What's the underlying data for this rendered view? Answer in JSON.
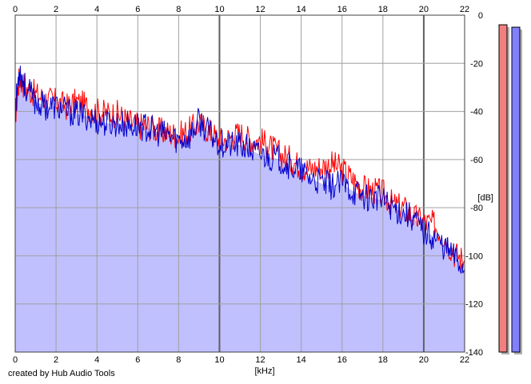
{
  "footer": "created by Hub Audio Tools",
  "chart_data": {
    "type": "line",
    "title": "",
    "xlabel": "[kHz]",
    "ylabel": "[dB]",
    "xlim": [
      0,
      22
    ],
    "ylim": [
      -140,
      0
    ],
    "x_ticks": [
      0,
      2,
      4,
      6,
      8,
      10,
      12,
      14,
      16,
      18,
      20,
      22
    ],
    "x_tick_labels": [
      "0",
      "2",
      "4",
      "6",
      "8",
      "10",
      "12",
      "14",
      "16",
      "18",
      "20",
      "22"
    ],
    "y_ticks": [
      0,
      -20,
      -40,
      -60,
      -80,
      -100,
      -120,
      -140
    ],
    "y_tick_labels": [
      "0",
      "-20",
      "-40",
      "-60",
      "-80",
      "-100",
      "-120",
      "-140"
    ],
    "grid": true,
    "x_ticks_top": true,
    "y_axis_side": "right",
    "colors": {
      "red_series": "#ff0000",
      "blue_series": "#0000cc",
      "fill": "#c0c0ff",
      "meter_red": "#f08080",
      "meter_blue": "#8080ff"
    },
    "series": [
      {
        "color": "red",
        "x": [
          0,
          0.2,
          0.5,
          1,
          1.5,
          2,
          2.5,
          3,
          3.5,
          4,
          4.5,
          5,
          5.5,
          6,
          6.5,
          7,
          7.5,
          8,
          8.5,
          9,
          9.5,
          10,
          10.5,
          11,
          11.5,
          12,
          12.5,
          13,
          13.5,
          14,
          14.5,
          15,
          15.5,
          16,
          16.5,
          17,
          17.5,
          18,
          18.5,
          19,
          19.5,
          20,
          20.5,
          21,
          21.5,
          22
        ],
        "y": [
          -42,
          -26,
          -30,
          -33,
          -35,
          -36,
          -38,
          -36,
          -38,
          -40,
          -41,
          -41,
          -44,
          -46,
          -46,
          -48,
          -49,
          -50,
          -48,
          -45,
          -48,
          -52,
          -51,
          -49,
          -52,
          -52,
          -55,
          -58,
          -60,
          -63,
          -64,
          -63,
          -62,
          -64,
          -68,
          -72,
          -73,
          -74,
          -79,
          -80,
          -84,
          -86,
          -87,
          -92,
          -99,
          -102
        ]
      },
      {
        "color": "blue",
        "x": [
          0,
          0.2,
          0.5,
          1,
          1.5,
          2,
          2.5,
          3,
          3.5,
          4,
          4.5,
          5,
          5.5,
          6,
          6.5,
          7,
          7.5,
          8,
          8.5,
          9,
          9.5,
          10,
          10.5,
          11,
          11.5,
          12,
          12.5,
          13,
          13.5,
          14,
          14.5,
          15,
          15.5,
          16,
          16.5,
          17,
          17.5,
          18,
          18.5,
          19,
          19.5,
          20,
          20.5,
          21,
          21.5,
          22
        ],
        "y": [
          -40,
          -22,
          -30,
          -36,
          -38,
          -38,
          -40,
          -41,
          -42,
          -44,
          -45,
          -45,
          -46,
          -46,
          -47,
          -49,
          -50,
          -52,
          -51,
          -44,
          -49,
          -53,
          -54,
          -54,
          -56,
          -58,
          -59,
          -60,
          -63,
          -65,
          -68,
          -70,
          -71,
          -70,
          -73,
          -75,
          -76,
          -77,
          -80,
          -82,
          -84,
          -90,
          -92,
          -96,
          -100,
          -106
        ]
      }
    ],
    "level_meters": [
      {
        "color": "red",
        "value_db": -2
      },
      {
        "color": "blue",
        "value_db": -3
      }
    ]
  }
}
